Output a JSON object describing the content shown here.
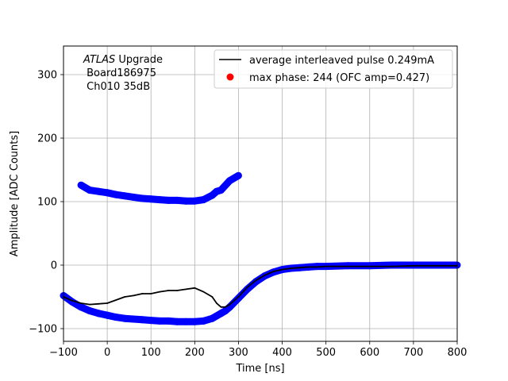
{
  "chart_data": {
    "type": "scatter",
    "xlabel": "Time [ns]",
    "ylabel": "Amplitude [ADC Counts]",
    "xlim": [
      -100,
      800
    ],
    "ylim": [
      -120,
      345
    ],
    "xticks": [
      -100,
      0,
      100,
      200,
      300,
      400,
      500,
      600,
      700,
      800
    ],
    "yticks": [
      -100,
      0,
      100,
      200,
      300
    ],
    "grid": true,
    "legend_position": "top-right",
    "annotation": {
      "atlas": "ATLAS",
      "upgrade": " Upgrade",
      "board": " Board186975",
      "channel": " Ch010 35dB"
    },
    "series": [
      {
        "name": "average interleaved pulse 0.249mA",
        "kind": "line",
        "color": "#000000",
        "x": [
          -100,
          -80,
          -60,
          -40,
          -20,
          0,
          20,
          40,
          60,
          80,
          100,
          120,
          140,
          160,
          180,
          200,
          220,
          240,
          250,
          260,
          270,
          280,
          300,
          320,
          340,
          360,
          380,
          400,
          420,
          440,
          460,
          480,
          500,
          550,
          600,
          650,
          700,
          750,
          800
        ],
        "y": [
          -50,
          -56,
          -60,
          -62,
          -61,
          -60,
          -55,
          -50,
          -48,
          -45,
          -45,
          -42,
          -40,
          -40,
          -38,
          -36,
          -42,
          -50,
          -60,
          -66,
          -66,
          -62,
          -50,
          -35,
          -24,
          -16,
          -10,
          -7,
          -5,
          -4,
          -3,
          -3,
          -2,
          -2,
          -2,
          -2,
          -1,
          -1,
          -1
        ]
      },
      {
        "name": "",
        "kind": "points",
        "color": "#0000ff",
        "x": [
          -100,
          -80,
          -60,
          -40,
          -20,
          0,
          20,
          40,
          60,
          80,
          100,
          120,
          140,
          160,
          180,
          200,
          220,
          240,
          250,
          260,
          270,
          280,
          300,
          320,
          340,
          360,
          380,
          400,
          420,
          440,
          460,
          480,
          500,
          550,
          600,
          650,
          700,
          750,
          800
        ],
        "y": [
          -48,
          -58,
          -66,
          -72,
          -76,
          -79,
          -82,
          -84,
          -85,
          -86,
          -87,
          -88,
          -88,
          -89,
          -89,
          -89,
          -88,
          -84,
          -80,
          -76,
          -72,
          -66,
          -52,
          -38,
          -26,
          -17,
          -11,
          -7,
          -5,
          -4,
          -3,
          -2,
          -2,
          -1,
          -1,
          0,
          0,
          0,
          0
        ]
      },
      {
        "name": "",
        "kind": "points",
        "color": "#0000ff",
        "x": [
          -60,
          -40,
          -20,
          0,
          20,
          40,
          60,
          80,
          100,
          120,
          140,
          160,
          180,
          200,
          220,
          240,
          250,
          260,
          280,
          300
        ],
        "y": [
          126,
          118,
          116,
          114,
          111,
          109,
          107,
          105,
          104,
          103,
          102,
          102,
          101,
          101,
          103,
          110,
          116,
          118,
          133,
          141
        ]
      },
      {
        "name": "max phase: 244 (OFC amp=0.427)",
        "kind": "marker",
        "color": "#ff0000",
        "x": [],
        "y": []
      }
    ]
  }
}
